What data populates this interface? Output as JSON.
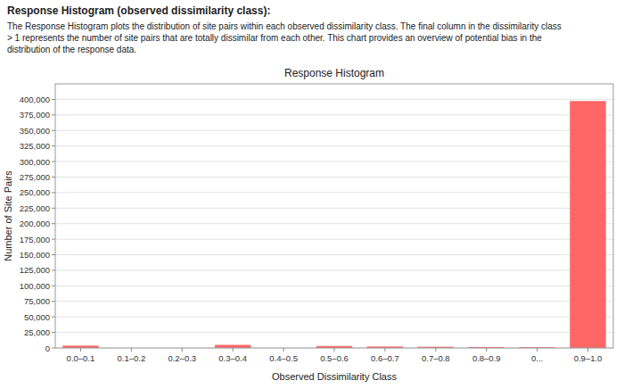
{
  "chart_data": {
    "type": "bar",
    "title": "Response Histogram",
    "annotations": [
      "Response Histogram (observed dissimilarity class):",
      "The Response Histogram plots the distribution of site pairs within each observed dissimilarity class. The final column in the dissimilarity class",
      "> 1 represents the number of site pairs that are totally dissimilar from each other. This chart provides an overview of potential bias in the",
      "distribution of the response data."
    ],
    "x_label": "Observed Dissimilarity Class",
    "y_label": "Number of Site Pairs",
    "categories": [
      "0.0–0.1",
      "0.1–0.2",
      "0.2–0.3",
      "0.3–0.4",
      "0.4–0.5",
      "0.5–0.6",
      "0.6–0.7",
      "0.7–0.8",
      "0.8–0.9",
      "0...",
      "0.9–1.0"
    ],
    "values": [
      3200,
      0,
      0,
      4500,
      0,
      2800,
      1800,
      1500,
      1200,
      700,
      397000
    ],
    "color": "#FF6666",
    "ylim": [
      0,
      425000
    ],
    "yticks": [
      0,
      {
        "value": 25000,
        "label": "25,000"
      },
      {
        "value": 50000,
        "label": "50,000"
      },
      {
        "value": 75000,
        "label": "75,000"
      },
      {
        "value": 100000,
        "label": "100,000"
      },
      {
        "value": 125000,
        "label": "125,000"
      },
      {
        "value": 150000,
        "label": "150,000"
      },
      {
        "value": 175000,
        "label": "175,000"
      },
      {
        "value": 200000,
        "label": "200,000"
      },
      {
        "value": 225000,
        "label": "225,000"
      },
      {
        "value": 250000,
        "label": "250,000"
      },
      {
        "value": 275000,
        "label": "275,000"
      },
      {
        "value": 300000,
        "label": "300,000"
      },
      {
        "value": 325000,
        "label": "325,000"
      },
      {
        "value": 350000,
        "label": "350,000"
      },
      {
        "value": 375000,
        "label": "375,000"
      },
      {
        "value": 400000,
        "label": "400,000"
      }
    ],
    "grid": true
  }
}
